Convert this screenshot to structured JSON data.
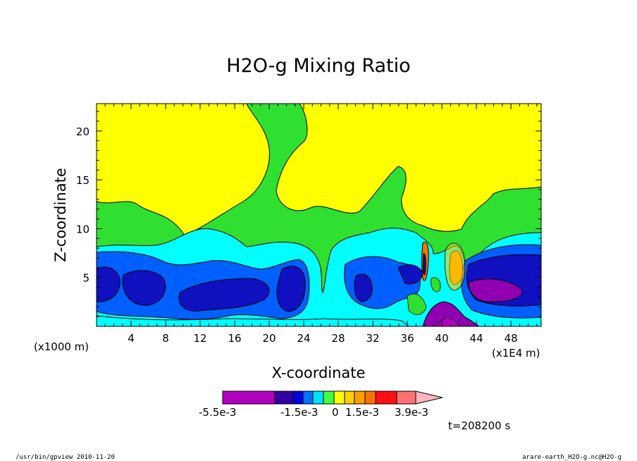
{
  "chart_data": {
    "type": "heatmap",
    "title": "H2O-g Mixing Ratio",
    "xlabel": "X-coordinate",
    "ylabel": "Z-coordinate",
    "x_unit_left": "(x1000 m)",
    "x_unit_right": "(x1E4 m)",
    "xlim": [
      0,
      51.5
    ],
    "ylim": [
      0,
      22.8
    ],
    "x_ticks": [
      "4",
      "8",
      "12",
      "16",
      "20",
      "24",
      "28",
      "32",
      "36",
      "40",
      "44",
      "48"
    ],
    "y_ticks": [
      "5",
      "10",
      "15",
      "20"
    ],
    "grid": false,
    "colorbar": {
      "labels": [
        "-5.5e-3",
        "-1.5e-3",
        "0",
        "1.5e-3",
        "3.9e-3"
      ],
      "colors": [
        "#b000c0",
        "#8c00b0",
        "#3000a0",
        "#0000e0",
        "#0070ff",
        "#00e0ff",
        "#40ff40",
        "#ffff00",
        "#ffd000",
        "#ffa000",
        "#ff7000",
        "#ff1010",
        "#ff7070",
        "#ffb6c1"
      ]
    },
    "time_label": "t=208200 s",
    "regions": [
      {
        "level": "yellow",
        "color": "#ffff00",
        "desc": "upper layer (above ~10-13)"
      },
      {
        "level": "green",
        "color": "#30e030",
        "desc": "mid layer ~8-12 with plumes to 22"
      },
      {
        "level": "cyan",
        "color": "#00ffff",
        "desc": "layer ~5-9"
      },
      {
        "level": "blue",
        "color": "#0060ff",
        "desc": "lower layer ~1-7"
      },
      {
        "level": "dark-blue",
        "color": "#0000c0",
        "desc": "cores ~2-6"
      },
      {
        "level": "purple",
        "color": "#9000b0",
        "desc": "disturbed region near x=40"
      },
      {
        "level": "orange",
        "color": "#ffa000",
        "desc": "peak near x=41"
      }
    ]
  },
  "footer": {
    "left": "/usr/bin/gpview  2010-11-20",
    "right": "arare-earth_H2O-g.nc@H2O-g"
  }
}
